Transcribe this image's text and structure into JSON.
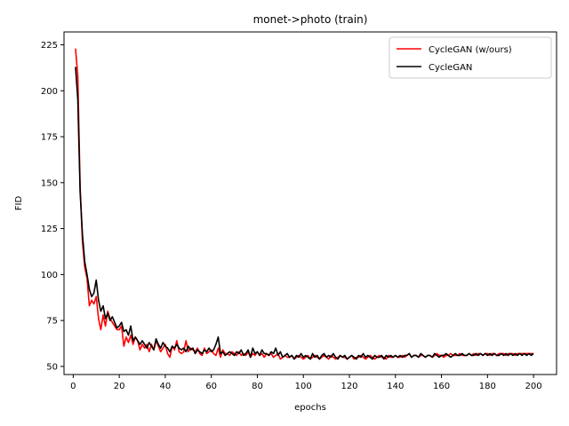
{
  "chart_data": {
    "type": "line",
    "title": "monet->photo (train)",
    "xlabel": "epochs",
    "ylabel": "FID",
    "xlim": [
      -4,
      210
    ],
    "ylim": [
      45.6,
      232.0
    ],
    "xticks": [
      0,
      20,
      40,
      60,
      80,
      100,
      120,
      140,
      160,
      180,
      200
    ],
    "yticks": [
      50,
      75,
      100,
      125,
      150,
      175,
      200,
      225
    ],
    "grid": false,
    "legend_position": "top-right",
    "series": [
      {
        "name": "CycleGAN (w/ours)",
        "color": "#ff0000",
        "x": [
          1,
          2,
          3,
          4,
          5,
          6,
          7,
          8,
          9,
          10,
          11,
          12,
          13,
          14,
          15,
          16,
          17,
          18,
          19,
          20,
          21,
          22,
          23,
          24,
          25,
          26,
          27,
          28,
          29,
          30,
          31,
          32,
          33,
          34,
          35,
          36,
          37,
          38,
          39,
          40,
          41,
          42,
          43,
          44,
          45,
          46,
          47,
          48,
          49,
          50,
          51,
          52,
          53,
          54,
          55,
          56,
          57,
          58,
          59,
          60,
          61,
          62,
          63,
          64,
          65,
          66,
          67,
          68,
          69,
          70,
          71,
          72,
          73,
          74,
          75,
          76,
          77,
          78,
          79,
          80,
          81,
          82,
          83,
          84,
          85,
          86,
          87,
          88,
          89,
          90,
          91,
          92,
          93,
          94,
          95,
          96,
          97,
          98,
          99,
          100,
          101,
          102,
          103,
          104,
          105,
          106,
          107,
          108,
          109,
          110,
          111,
          112,
          113,
          114,
          115,
          116,
          117,
          118,
          119,
          120,
          121,
          122,
          123,
          124,
          125,
          126,
          127,
          128,
          129,
          130,
          131,
          132,
          133,
          134,
          135,
          136,
          137,
          138,
          139,
          140,
          141,
          142,
          143,
          144,
          145,
          146,
          147,
          148,
          149,
          150,
          151,
          152,
          153,
          154,
          155,
          156,
          157,
          158,
          159,
          160,
          161,
          162,
          163,
          164,
          165,
          166,
          167,
          168,
          169,
          170,
          171,
          172,
          173,
          174,
          175,
          176,
          177,
          178,
          179,
          180,
          181,
          182,
          183,
          184,
          185,
          186,
          187,
          188,
          189,
          190,
          191,
          192,
          193,
          194,
          195,
          196,
          197,
          198,
          199,
          200
        ],
        "values": [
          223,
          208,
          148,
          118,
          104,
          98,
          83,
          86,
          84,
          88,
          76,
          70,
          78,
          72,
          80,
          76,
          74,
          72,
          70,
          70,
          72,
          61,
          66,
          63,
          67,
          62,
          66,
          64,
          59,
          62,
          60,
          62,
          58,
          62,
          59,
          64,
          61,
          58,
          60,
          62,
          57,
          55,
          61,
          59,
          64,
          58,
          57,
          58,
          64,
          58,
          60,
          59,
          58,
          60,
          57,
          56,
          60,
          57,
          58,
          59,
          57,
          56,
          60,
          55,
          59,
          57,
          57,
          56,
          58,
          57,
          56,
          58,
          56,
          57,
          56,
          58,
          55,
          57,
          56,
          58,
          56,
          57,
          55,
          57,
          56,
          57,
          55,
          56,
          57,
          54,
          55,
          56,
          55,
          55,
          56,
          54,
          55,
          56,
          55,
          54,
          55,
          56,
          54,
          55,
          56,
          55,
          54,
          55,
          56,
          55,
          54,
          56,
          55,
          54,
          55,
          56,
          55,
          55,
          54,
          55,
          56,
          54,
          55,
          55,
          56,
          55,
          54,
          55,
          56,
          55,
          54,
          55,
          56,
          55,
          55,
          54,
          56,
          55,
          55,
          56,
          55,
          55,
          56,
          55,
          56,
          57,
          55,
          56,
          56,
          55,
          56,
          56,
          55,
          56,
          56,
          55,
          56,
          57,
          56,
          56,
          55,
          56,
          56,
          57,
          56,
          56,
          56,
          57,
          56,
          56,
          56,
          57,
          56,
          57,
          56,
          57,
          57,
          56,
          57,
          57,
          56,
          57,
          57,
          56,
          57,
          57,
          57,
          56,
          57,
          57,
          57,
          56,
          57,
          57,
          57,
          57,
          57,
          57,
          57,
          57
        ]
      },
      {
        "name": "CycleGAN",
        "color": "#000000",
        "x": [
          1,
          2,
          3,
          4,
          5,
          6,
          7,
          8,
          9,
          10,
          11,
          12,
          13,
          14,
          15,
          16,
          17,
          18,
          19,
          20,
          21,
          22,
          23,
          24,
          25,
          26,
          27,
          28,
          29,
          30,
          31,
          32,
          33,
          34,
          35,
          36,
          37,
          38,
          39,
          40,
          41,
          42,
          43,
          44,
          45,
          46,
          47,
          48,
          49,
          50,
          51,
          52,
          53,
          54,
          55,
          56,
          57,
          58,
          59,
          60,
          61,
          62,
          63,
          64,
          65,
          66,
          67,
          68,
          69,
          70,
          71,
          72,
          73,
          74,
          75,
          76,
          77,
          78,
          79,
          80,
          81,
          82,
          83,
          84,
          85,
          86,
          87,
          88,
          89,
          90,
          91,
          92,
          93,
          94,
          95,
          96,
          97,
          98,
          99,
          100,
          101,
          102,
          103,
          104,
          105,
          106,
          107,
          108,
          109,
          110,
          111,
          112,
          113,
          114,
          115,
          116,
          117,
          118,
          119,
          120,
          121,
          122,
          123,
          124,
          125,
          126,
          127,
          128,
          129,
          130,
          131,
          132,
          133,
          134,
          135,
          136,
          137,
          138,
          139,
          140,
          141,
          142,
          143,
          144,
          145,
          146,
          147,
          148,
          149,
          150,
          151,
          152,
          153,
          154,
          155,
          156,
          157,
          158,
          159,
          160,
          161,
          162,
          163,
          164,
          165,
          166,
          167,
          168,
          169,
          170,
          171,
          172,
          173,
          174,
          175,
          176,
          177,
          178,
          179,
          180,
          181,
          182,
          183,
          184,
          185,
          186,
          187,
          188,
          189,
          190,
          191,
          192,
          193,
          194,
          195,
          196,
          197,
          198,
          199,
          200
        ],
        "values": [
          213,
          195,
          145,
          122,
          107,
          100,
          92,
          88,
          90,
          97,
          86,
          80,
          83,
          76,
          79,
          75,
          77,
          74,
          71,
          72,
          74,
          69,
          70,
          67,
          72,
          64,
          66,
          64,
          62,
          64,
          62,
          60,
          63,
          61,
          59,
          65,
          62,
          60,
          63,
          61,
          60,
          58,
          61,
          60,
          62,
          60,
          59,
          60,
          58,
          61,
          59,
          60,
          57,
          59,
          58,
          57,
          59,
          58,
          60,
          58,
          59,
          62,
          66,
          57,
          58,
          56,
          57,
          58,
          57,
          56,
          58,
          57,
          59,
          56,
          57,
          59,
          55,
          60,
          57,
          58,
          56,
          59,
          57,
          57,
          56,
          58,
          57,
          60,
          56,
          58,
          55,
          56,
          57,
          55,
          56,
          54,
          56,
          55,
          57,
          55,
          56,
          55,
          54,
          57,
          55,
          56,
          54,
          56,
          57,
          55,
          56,
          55,
          57,
          55,
          54,
          56,
          55,
          56,
          54,
          55,
          56,
          55,
          54,
          56,
          55,
          57,
          55,
          56,
          55,
          54,
          56,
          55,
          55,
          56,
          54,
          56,
          55,
          56,
          55,
          56,
          55,
          56,
          55,
          56,
          56,
          57,
          55,
          56,
          56,
          55,
          57,
          56,
          55,
          56,
          56,
          55,
          57,
          56,
          55,
          56,
          56,
          57,
          56,
          55,
          56,
          57,
          56,
          56,
          57,
          56,
          56,
          57,
          56,
          56,
          57,
          56,
          57,
          56,
          57,
          56,
          57,
          56,
          57,
          56,
          56,
          57,
          56,
          57,
          56,
          57,
          56,
          57,
          56,
          57,
          56,
          57,
          56,
          57,
          56,
          57
        ]
      }
    ]
  }
}
